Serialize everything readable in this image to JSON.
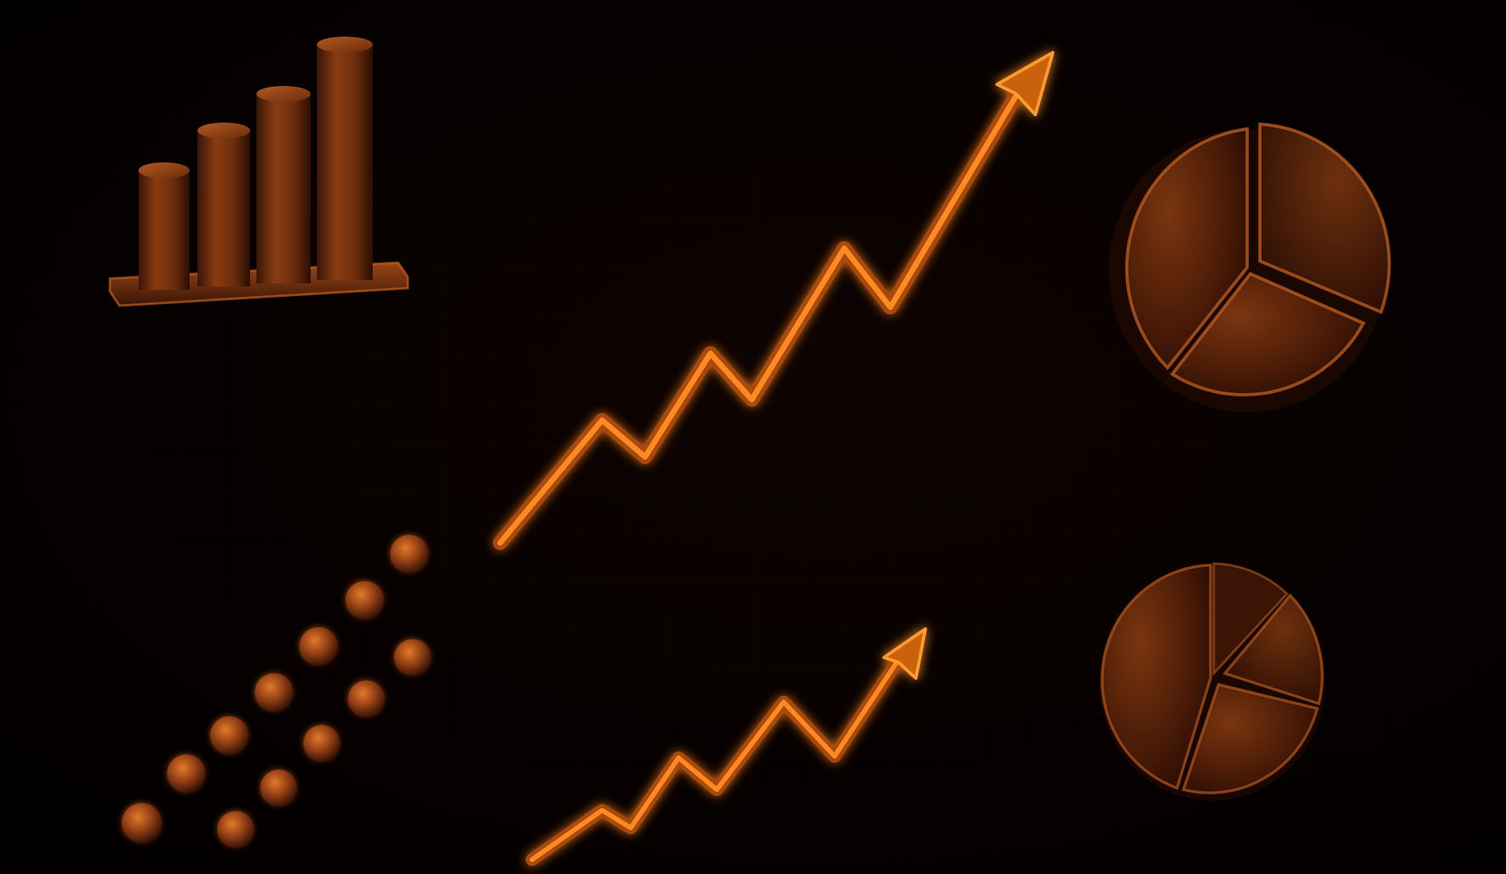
{
  "scene": {
    "description_tag": "decorative-chart-icons",
    "palette": {
      "background": "#030100",
      "glow": "#ff8a1a",
      "bronze_light": "#b0521a",
      "bronze_mid": "#7a3510",
      "bronze_dark": "#3a1506",
      "grid": "#1d0a04"
    },
    "icons": [
      "bar-chart-icon",
      "rising-line-arrow-icon",
      "pie-chart-icon",
      "scatter-dots-icon",
      "small-rising-line-arrow-icon",
      "small-pie-chart-icon"
    ]
  }
}
